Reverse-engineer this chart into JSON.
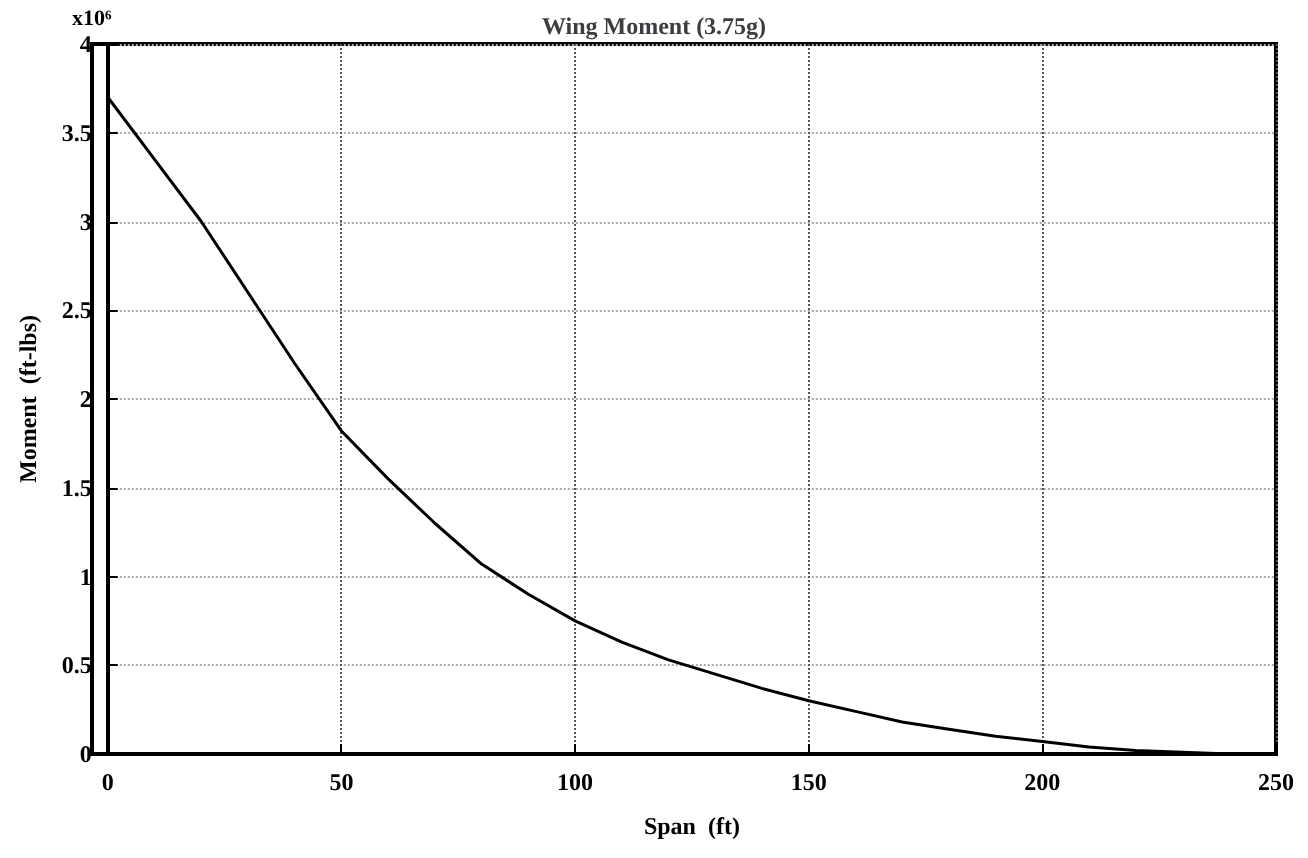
{
  "chart_data": {
    "type": "line",
    "title": "Wing Moment (3.75g)",
    "xlabel": "Span  (ft)",
    "ylabel": "Moment  (ft-lbs)",
    "annotations": [
      "x10⁶"
    ],
    "x": [
      0,
      10,
      20,
      30,
      40,
      50,
      60,
      70,
      80,
      90,
      100,
      110,
      120,
      130,
      140,
      150,
      160,
      170,
      180,
      190,
      200,
      210,
      220,
      230,
      240
    ],
    "series": [
      {
        "color": "#000000",
        "values": [
          3.7,
          3.35,
          3.0,
          2.6,
          2.2,
          1.82,
          1.55,
          1.3,
          1.07,
          0.9,
          0.75,
          0.63,
          0.53,
          0.45,
          0.37,
          0.3,
          0.24,
          0.18,
          0.14,
          0.1,
          0.07,
          0.04,
          0.02,
          0.01,
          0
        ]
      }
    ],
    "xlim": [
      0,
      250
    ],
    "xticks": [
      0,
      50,
      100,
      150,
      200,
      250
    ],
    "ylim": [
      0,
      4
    ],
    "yticks": [
      0,
      0.5,
      1,
      1.5,
      2,
      2.5,
      3,
      3.5,
      4
    ],
    "grid": true,
    "marker": "none",
    "line_style": "solid"
  }
}
